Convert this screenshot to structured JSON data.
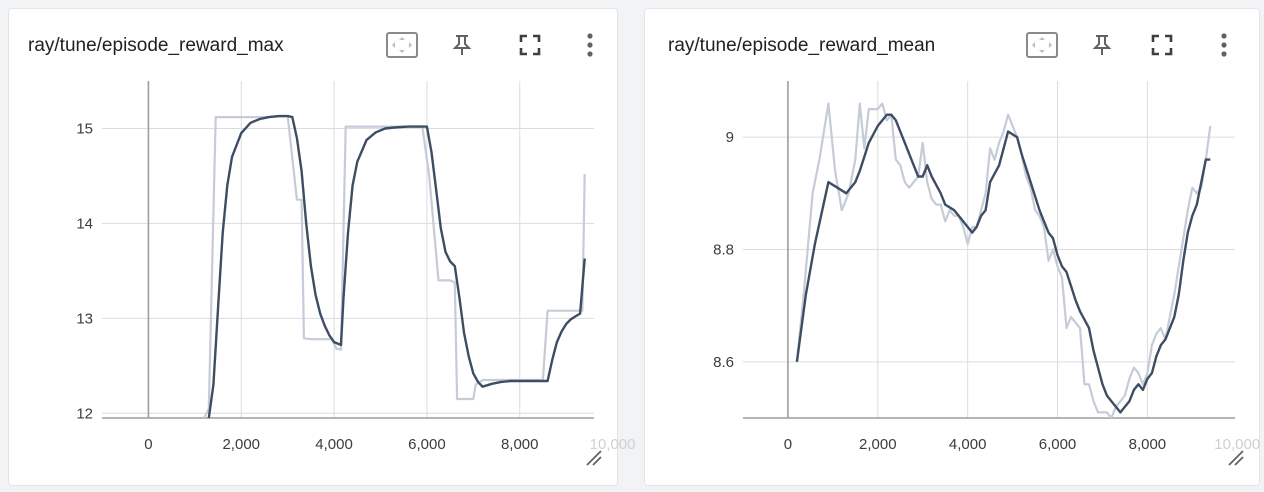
{
  "colors": {
    "smoothed": "#3d4d63",
    "raw": "#c5ccd7",
    "grid": "#dcdcdc",
    "axis": "#9e9e9e"
  },
  "toolbar": {
    "fit_icon": "fit-domain-icon",
    "pin_icon": "pin-icon",
    "fullscreen_icon": "fullscreen-icon",
    "menu_icon": "more-vert-icon"
  },
  "chart_data": [
    {
      "type": "line",
      "title": "ray/tune/episode_reward_max",
      "xlim": [
        -1000,
        9600
      ],
      "ylim": [
        11.95,
        15.5
      ],
      "x_ticks": [
        0,
        2000,
        4000,
        6000,
        8000,
        10000
      ],
      "x_tick_labels": [
        "0",
        "2,000",
        "4,000",
        "6,000",
        "8,000",
        "10,000"
      ],
      "y_ticks": [
        12,
        13,
        14,
        15
      ],
      "y_tick_labels": [
        "12",
        "13",
        "14",
        "15"
      ],
      "grid": true,
      "series": [
        {
          "role": "raw",
          "x": [
            1200,
            1300,
            1450,
            2000,
            2500,
            3000,
            3200,
            3300,
            3350,
            3500,
            3950,
            4050,
            4150,
            4250,
            4350,
            5000,
            5500,
            5900,
            6050,
            6250,
            6400,
            6500,
            6600,
            6650,
            6900,
            7000,
            7050,
            7200,
            8000,
            8500,
            8600,
            8700,
            9200,
            9350,
            9400
          ],
          "y": [
            11.95,
            12.05,
            15.12,
            15.12,
            15.12,
            15.13,
            14.25,
            14.25,
            12.79,
            12.78,
            12.78,
            12.68,
            12.67,
            15.02,
            15.02,
            15.02,
            15.02,
            15.02,
            14.5,
            13.4,
            13.4,
            13.4,
            13.38,
            12.15,
            12.15,
            12.15,
            12.3,
            12.35,
            12.35,
            12.35,
            13.08,
            13.08,
            13.08,
            13.08,
            14.52
          ]
        },
        {
          "role": "smoothed",
          "x": [
            1300,
            1400,
            1500,
            1600,
            1700,
            1800,
            2000,
            2200,
            2400,
            2600,
            2800,
            3000,
            3100,
            3200,
            3300,
            3400,
            3500,
            3600,
            3700,
            3800,
            3900,
            4000,
            4100,
            4150,
            4200,
            4300,
            4400,
            4500,
            4700,
            4900,
            5100,
            5300,
            5600,
            5900,
            6000,
            6100,
            6200,
            6300,
            6400,
            6500,
            6600,
            6700,
            6800,
            6900,
            7000,
            7100,
            7200,
            7400,
            7600,
            7800,
            8000,
            8200,
            8400,
            8600,
            8700,
            8800,
            8900,
            9000,
            9100,
            9200,
            9300,
            9400
          ],
          "y": [
            11.95,
            12.3,
            13.1,
            13.9,
            14.4,
            14.7,
            14.95,
            15.06,
            15.1,
            15.12,
            15.13,
            15.13,
            15.12,
            14.9,
            14.55,
            14.0,
            13.55,
            13.25,
            13.05,
            12.92,
            12.82,
            12.75,
            12.73,
            12.72,
            13.2,
            13.9,
            14.4,
            14.65,
            14.88,
            14.96,
            15.0,
            15.01,
            15.02,
            15.02,
            15.02,
            14.75,
            14.35,
            13.95,
            13.7,
            13.6,
            13.55,
            13.22,
            12.85,
            12.6,
            12.42,
            12.33,
            12.28,
            12.31,
            12.33,
            12.34,
            12.34,
            12.34,
            12.34,
            12.34,
            12.56,
            12.75,
            12.86,
            12.94,
            12.99,
            13.02,
            13.05,
            13.63
          ]
        }
      ]
    },
    {
      "type": "line",
      "title": "ray/tune/episode_reward_mean",
      "xlim": [
        -1000,
        9950
      ],
      "ylim": [
        8.5,
        9.1
      ],
      "x_ticks": [
        0,
        2000,
        4000,
        6000,
        8000,
        10000
      ],
      "x_tick_labels": [
        "0",
        "2,000",
        "4,000",
        "6,000",
        "8,000",
        "10,000"
      ],
      "y_ticks": [
        8.6,
        8.8,
        9.0
      ],
      "y_tick_labels": [
        "8.6",
        "8.8",
        "9"
      ],
      "grid": true,
      "series": [
        {
          "role": "raw",
          "x": [
            200,
            350,
            550,
            700,
            900,
            1050,
            1200,
            1350,
            1500,
            1600,
            1700,
            1800,
            1900,
            2000,
            2100,
            2200,
            2300,
            2400,
            2500,
            2600,
            2700,
            2800,
            2900,
            3000,
            3100,
            3200,
            3300,
            3400,
            3500,
            3600,
            3700,
            3800,
            3900,
            4000,
            4100,
            4200,
            4300,
            4400,
            4500,
            4600,
            4700,
            4800,
            4900,
            5000,
            5100,
            5200,
            5300,
            5400,
            5500,
            5600,
            5700,
            5800,
            5900,
            6000,
            6100,
            6200,
            6300,
            6400,
            6500,
            6600,
            6700,
            6800,
            6900,
            7000,
            7100,
            7200,
            7300,
            7400,
            7500,
            7600,
            7700,
            7800,
            7900,
            8000,
            8100,
            8200,
            8300,
            8400,
            8500,
            8600,
            8700,
            8800,
            8900,
            9000,
            9100,
            9200,
            9300,
            9400
          ],
          "y": [
            8.6,
            8.72,
            8.9,
            8.96,
            9.06,
            8.94,
            8.87,
            8.9,
            8.96,
            9.06,
            8.98,
            9.05,
            9.05,
            9.05,
            9.06,
            9.03,
            9.04,
            8.96,
            8.95,
            8.92,
            8.91,
            8.92,
            8.93,
            8.99,
            8.92,
            8.89,
            8.88,
            8.88,
            8.85,
            8.87,
            8.86,
            8.86,
            8.84,
            8.81,
            8.84,
            8.84,
            8.87,
            8.9,
            8.98,
            8.96,
            8.99,
            9.01,
            9.04,
            9.02,
            9.0,
            8.97,
            8.93,
            8.91,
            8.87,
            8.86,
            8.84,
            8.78,
            8.8,
            8.77,
            8.75,
            8.66,
            8.68,
            8.67,
            8.66,
            8.56,
            8.56,
            8.53,
            8.51,
            8.51,
            8.51,
            8.5,
            8.52,
            8.53,
            8.54,
            8.57,
            8.59,
            8.58,
            8.56,
            8.58,
            8.63,
            8.65,
            8.66,
            8.64,
            8.68,
            8.72,
            8.77,
            8.82,
            8.87,
            8.91,
            8.9,
            8.91,
            8.96,
            9.02
          ]
        },
        {
          "role": "smoothed",
          "x": [
            200,
            400,
            600,
            900,
            1100,
            1300,
            1500,
            1600,
            1800,
            2000,
            2200,
            2300,
            2400,
            2600,
            2800,
            2900,
            3000,
            3100,
            3200,
            3400,
            3500,
            3700,
            3800,
            4000,
            4100,
            4200,
            4300,
            4400,
            4500,
            4700,
            4800,
            4900,
            5100,
            5200,
            5400,
            5600,
            5800,
            5900,
            6000,
            6100,
            6200,
            6400,
            6500,
            6700,
            6800,
            6900,
            7000,
            7100,
            7200,
            7300,
            7400,
            7500,
            7600,
            7700,
            7800,
            7900,
            8000,
            8100,
            8200,
            8300,
            8400,
            8600,
            8700,
            8800,
            8900,
            9000,
            9100,
            9200,
            9300,
            9400
          ],
          "y": [
            8.6,
            8.72,
            8.81,
            8.92,
            8.91,
            8.9,
            8.92,
            8.94,
            8.99,
            9.02,
            9.04,
            9.04,
            9.03,
            8.99,
            8.95,
            8.93,
            8.93,
            8.95,
            8.93,
            8.9,
            8.88,
            8.87,
            8.86,
            8.84,
            8.83,
            8.84,
            8.86,
            8.87,
            8.92,
            8.95,
            8.98,
            9.01,
            9.0,
            8.97,
            8.92,
            8.87,
            8.83,
            8.82,
            8.79,
            8.77,
            8.76,
            8.71,
            8.69,
            8.66,
            8.62,
            8.59,
            8.56,
            8.54,
            8.53,
            8.52,
            8.51,
            8.52,
            8.53,
            8.55,
            8.56,
            8.55,
            8.57,
            8.58,
            8.61,
            8.63,
            8.64,
            8.68,
            8.72,
            8.78,
            8.83,
            8.86,
            8.88,
            8.92,
            8.96,
            8.96
          ]
        }
      ]
    }
  ]
}
